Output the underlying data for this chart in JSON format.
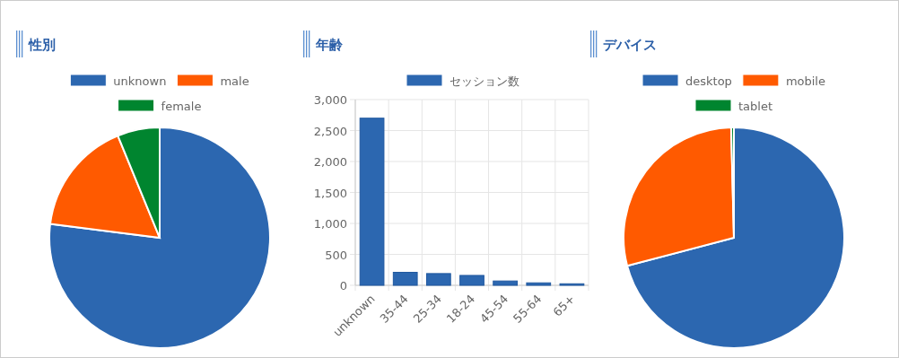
{
  "chart_data": [
    {
      "type": "pie",
      "title": "性別",
      "categories": [
        "unknown",
        "male",
        "female"
      ],
      "values": [
        77,
        16.8,
        6.2
      ],
      "colors": [
        "#2c67b0",
        "#ff5a00",
        "#00852f"
      ],
      "legend": "top"
    },
    {
      "type": "bar",
      "title": "年齢",
      "categories": [
        "unknown",
        "35-44",
        "25-34",
        "18-24",
        "45-54",
        "55-64",
        "65+"
      ],
      "series": [
        {
          "name": "セッション数",
          "color": "#2c67b0",
          "values": [
            2700,
            210,
            190,
            160,
            70,
            40,
            25
          ]
        }
      ],
      "ylim": [
        0,
        3000
      ],
      "yticks": [
        {
          "value": 0,
          "label": "0"
        },
        {
          "value": 500,
          "label": "500"
        },
        {
          "value": 1000,
          "label": "1,000"
        },
        {
          "value": 1500,
          "label": "1,500"
        },
        {
          "value": 2000,
          "label": "2,000"
        },
        {
          "value": 2500,
          "label": "2,500"
        },
        {
          "value": 3000,
          "label": "3,000"
        }
      ],
      "grid": true,
      "legend": "top"
    },
    {
      "type": "pie",
      "title": "デバイス",
      "categories": [
        "desktop",
        "mobile",
        "tablet"
      ],
      "values": [
        70.9,
        28.7,
        0.4
      ],
      "colors": [
        "#2c67b0",
        "#ff5a00",
        "#00852f"
      ],
      "legend": "top"
    }
  ]
}
